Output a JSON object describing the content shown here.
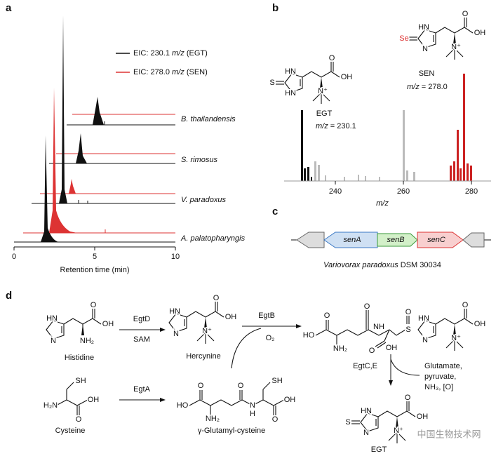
{
  "panel_a": {
    "label": "a",
    "legend": [
      {
        "prefix": "EIC: 230.1 ",
        "unit": "m/z",
        "suffix": " (EGT)"
      },
      {
        "prefix": "EIC: 278.0 ",
        "unit": "m/z",
        "suffix": " (SEN)"
      }
    ],
    "samples": [
      "B. thailandensis",
      "S. rimosus",
      "V. paradoxus",
      "A. palatopharyngis"
    ],
    "ticks": [
      "0",
      "5",
      "10"
    ],
    "axis_label": "Retention time (min)"
  },
  "panel_b": {
    "label": "b",
    "egt": {
      "atoms": [
        "S",
        "HN",
        "HN",
        "O",
        "OH",
        "N⁺"
      ],
      "name": "EGT",
      "mz_unit": "m/z",
      "mz_value": " = 230.1"
    },
    "sen": {
      "atoms": [
        "Se",
        "HN",
        "N",
        "O",
        "OH",
        "N⁺"
      ],
      "name": "SEN",
      "mz_unit": "m/z",
      "mz_value": " = 278.0"
    },
    "ticks": [
      "240",
      "260",
      "280"
    ],
    "axis_label": "m/z"
  },
  "panel_c": {
    "label": "c",
    "genes": [
      "senA",
      "senB",
      "senC"
    ],
    "caption": {
      "species": "Variovorax paradoxus",
      "strain": " DSM 30034"
    }
  },
  "panel_d": {
    "label": "d",
    "histidine": {
      "atoms": [
        "HN",
        "N",
        "O",
        "OH",
        "NH₂"
      ],
      "name": "Histidine"
    },
    "hercynine": {
      "atoms": [
        "HN",
        "N",
        "O",
        "OH",
        "N⁺"
      ],
      "name": "Hercynine"
    },
    "cysteine": {
      "atoms": [
        "SH",
        "H₂N",
        "O",
        "OH"
      ],
      "name": "Cysteine"
    },
    "glucys": {
      "atoms": [
        "O",
        "HO",
        "NH₂",
        "O",
        "N",
        "H",
        "SH",
        "O",
        "OH"
      ],
      "name": "γ-Glutamyl-cysteine"
    },
    "conjugate": {
      "atoms": [
        "O",
        "HO",
        "NH₂",
        "O",
        "NH",
        "O",
        "OH",
        "S",
        "O",
        "HN",
        "N",
        "O",
        "OH",
        "N⁺"
      ]
    },
    "egt": {
      "atoms": [
        "S",
        "HN",
        "N",
        "O",
        "OH",
        "N⁺"
      ],
      "name": "EGT"
    },
    "enzymes": [
      "EgtD",
      "SAM",
      "EgtB",
      "O₂",
      "EgtA",
      "EgtC,E"
    ],
    "byproducts": [
      "Glutamate,",
      "pyruvate,",
      "NH₃, [O]"
    ]
  },
  "watermark": "中国生物技术网"
}
